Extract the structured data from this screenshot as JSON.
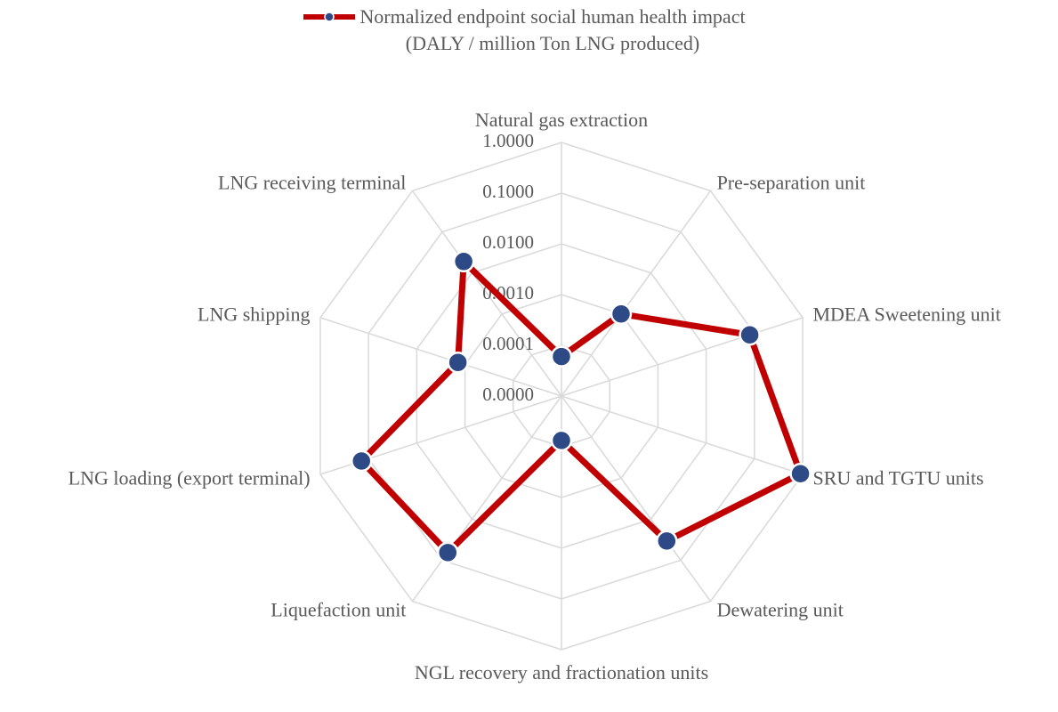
{
  "chart_data": {
    "type": "radar",
    "categories": [
      "Natural gas extraction",
      "Pre-separation unit",
      "MDEA Sweetening unit",
      "SRU and TGTU units",
      "Dewatering unit",
      "NGL recovery and fractionation units",
      "Liquefaction unit",
      "LNG loading (export terminal)",
      "LNG shipping",
      "LNG receiving terminal"
    ],
    "series": [
      {
        "name": "Normalized endpoint social human health impact (DALY / million Ton LNG produced)",
        "color": "#c00000",
        "marker_color": "#2e4a86",
        "values": [
          6e-05,
          0.001,
          0.08,
          0.9,
          0.034,
          7.5e-05,
          0.065,
          0.14,
          0.0014,
          0.019
        ]
      }
    ],
    "yscale": "log",
    "ylim": [
      1e-05,
      1
    ],
    "yticks": [
      {
        "value": 1e-05,
        "label": "0.0000"
      },
      0.0001,
      {
        "value": 0.001,
        "label": "0.0010"
      },
      {
        "value": 0.01,
        "label": "0.0100"
      },
      {
        "value": 0.1,
        "label": "0.1000"
      },
      {
        "value": 1,
        "label": "1.0000"
      }
    ],
    "grid": true,
    "legend": "top"
  }
}
